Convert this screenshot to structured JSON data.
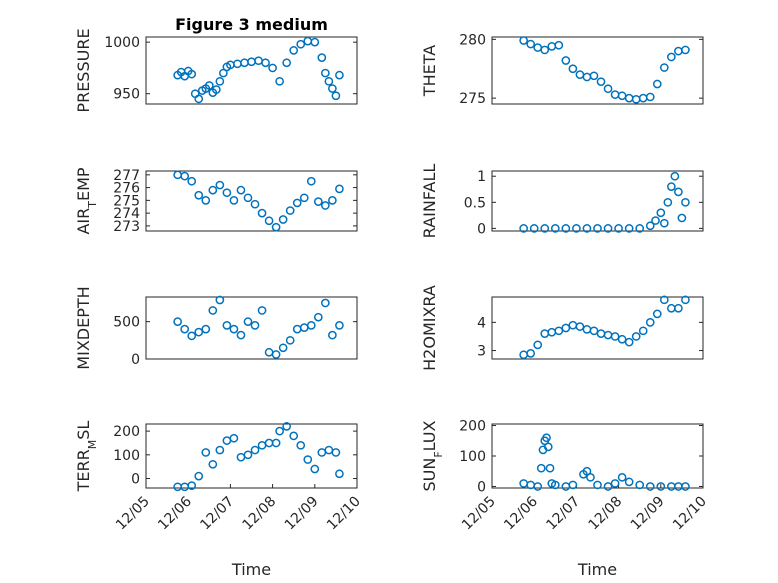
{
  "marker_color": "#0072BD",
  "chart_data": [
    {
      "type": "scatter",
      "title": "Figure 3 medium",
      "ylabel": "PRESSURE",
      "xlabel": "",
      "xlim": [
        "12/05",
        "12/10"
      ],
      "ylim": [
        940,
        1005
      ],
      "yticks": [
        "950",
        "1000"
      ],
      "xticks": [],
      "x": [
        "12/05 18:00",
        "12/05 20:00",
        "12/05 22:00",
        "12/06 00:00",
        "12/06 02:00",
        "12/06 04:00",
        "12/06 06:00",
        "12/06 08:00",
        "12/06 10:00",
        "12/06 12:00",
        "12/06 14:00",
        "12/06 16:00",
        "12/06 18:00",
        "12/06 20:00",
        "12/06 22:00",
        "12/07 00:00",
        "12/07 04:00",
        "12/07 08:00",
        "12/07 12:00",
        "12/07 16:00",
        "12/07 20:00",
        "12/08 00:00",
        "12/08 04:00",
        "12/08 08:00",
        "12/08 12:00",
        "12/08 16:00",
        "12/08 20:00",
        "12/09 00:00",
        "12/09 04:00",
        "12/09 06:00",
        "12/09 08:00",
        "12/09 10:00",
        "12/09 12:00",
        "12/09 14:00"
      ],
      "y": [
        968,
        971,
        967,
        972,
        969,
        950,
        945,
        953,
        955,
        958,
        951,
        954,
        962,
        970,
        976,
        978,
        979,
        980,
        981,
        982,
        980,
        975,
        962,
        980,
        992,
        998,
        1001,
        1000,
        985,
        970,
        962,
        955,
        948,
        968
      ]
    },
    {
      "type": "scatter",
      "ylabel": "THETA",
      "xlabel": "",
      "xlim": [
        "12/05",
        "12/10"
      ],
      "ylim": [
        274.5,
        280.2
      ],
      "yticks": [
        "275",
        "280"
      ],
      "xticks": [],
      "x": [
        "12/05 18:00",
        "12/05 22:00",
        "12/06 02:00",
        "12/06 06:00",
        "12/06 10:00",
        "12/06 14:00",
        "12/06 18:00",
        "12/06 22:00",
        "12/07 02:00",
        "12/07 06:00",
        "12/07 10:00",
        "12/07 14:00",
        "12/07 18:00",
        "12/07 22:00",
        "12/08 02:00",
        "12/08 06:00",
        "12/08 10:00",
        "12/08 14:00",
        "12/08 18:00",
        "12/08 22:00",
        "12/09 02:00",
        "12/09 06:00",
        "12/09 10:00",
        "12/09 14:00"
      ],
      "y": [
        279.9,
        279.6,
        279.3,
        279.1,
        279.4,
        279.5,
        278.2,
        277.5,
        277.0,
        276.8,
        276.9,
        276.4,
        275.8,
        275.3,
        275.2,
        275.0,
        274.9,
        275.0,
        275.1,
        276.2,
        277.6,
        278.5,
        279.0,
        279.1
      ]
    },
    {
      "type": "scatter",
      "ylabel": "AIR_TEMP",
      "xlabel": "",
      "xlim": [
        "12/05",
        "12/10"
      ],
      "ylim": [
        272.6,
        277.3
      ],
      "yticks": [
        "273",
        "274",
        "275",
        "276",
        "277"
      ],
      "xticks": [],
      "x": [
        "12/05 18:00",
        "12/05 22:00",
        "12/06 02:00",
        "12/06 06:00",
        "12/06 10:00",
        "12/06 14:00",
        "12/06 18:00",
        "12/06 22:00",
        "12/07 02:00",
        "12/07 06:00",
        "12/07 10:00",
        "12/07 14:00",
        "12/07 18:00",
        "12/07 22:00",
        "12/08 02:00",
        "12/08 06:00",
        "12/08 10:00",
        "12/08 14:00",
        "12/08 18:00",
        "12/08 22:00",
        "12/09 02:00",
        "12/09 06:00",
        "12/09 10:00",
        "12/09 14:00"
      ],
      "y": [
        277.0,
        276.9,
        276.5,
        275.4,
        275.0,
        275.8,
        276.2,
        275.6,
        275.0,
        275.8,
        275.2,
        274.7,
        274.0,
        273.4,
        272.9,
        273.5,
        274.2,
        274.8,
        275.2,
        276.5,
        274.9,
        274.6,
        275.0,
        275.9
      ]
    },
    {
      "type": "scatter",
      "ylabel": "RAINFALL",
      "xlabel": "",
      "xlim": [
        "12/05",
        "12/10"
      ],
      "ylim": [
        -0.05,
        1.1
      ],
      "yticks": [
        "0",
        "0.5",
        "1"
      ],
      "xticks": [],
      "x": [
        "12/05 18:00",
        "12/06 00:00",
        "12/06 06:00",
        "12/06 12:00",
        "12/06 18:00",
        "12/07 00:00",
        "12/07 06:00",
        "12/07 12:00",
        "12/07 18:00",
        "12/08 00:00",
        "12/08 06:00",
        "12/08 12:00",
        "12/08 18:00",
        "12/08 21:00",
        "12/09 00:00",
        "12/09 02:00",
        "12/09 04:00",
        "12/09 06:00",
        "12/09 08:00",
        "12/09 10:00",
        "12/09 12:00",
        "12/09 14:00"
      ],
      "y": [
        0,
        0,
        0,
        0,
        0,
        0,
        0,
        0,
        0,
        0,
        0,
        0,
        0.05,
        0.15,
        0.3,
        0.1,
        0.5,
        0.8,
        1.0,
        0.7,
        0.2,
        0.5
      ]
    },
    {
      "type": "scatter",
      "ylabel": "MIXDEPTH",
      "xlabel": "",
      "xlim": [
        "12/05",
        "12/10"
      ],
      "ylim": [
        0,
        830
      ],
      "yticks": [
        "0",
        "500"
      ],
      "xticks": [],
      "x": [
        "12/05 18:00",
        "12/05 22:00",
        "12/06 02:00",
        "12/06 06:00",
        "12/06 10:00",
        "12/06 14:00",
        "12/06 18:00",
        "12/06 22:00",
        "12/07 02:00",
        "12/07 06:00",
        "12/07 10:00",
        "12/07 14:00",
        "12/07 18:00",
        "12/07 22:00",
        "12/08 02:00",
        "12/08 06:00",
        "12/08 10:00",
        "12/08 14:00",
        "12/08 18:00",
        "12/08 22:00",
        "12/09 02:00",
        "12/09 06:00",
        "12/09 10:00",
        "12/09 14:00"
      ],
      "y": [
        500,
        400,
        310,
        360,
        400,
        650,
        790,
        450,
        400,
        320,
        500,
        450,
        650,
        90,
        60,
        150,
        250,
        400,
        420,
        450,
        560,
        750,
        320,
        450
      ]
    },
    {
      "type": "scatter",
      "ylabel": "H2OMIXRA",
      "xlabel": "",
      "xlim": [
        "12/05",
        "12/10"
      ],
      "ylim": [
        2.7,
        4.9
      ],
      "yticks": [
        "3",
        "4"
      ],
      "xticks": [],
      "x": [
        "12/05 18:00",
        "12/05 22:00",
        "12/06 02:00",
        "12/06 06:00",
        "12/06 10:00",
        "12/06 14:00",
        "12/06 18:00",
        "12/06 22:00",
        "12/07 02:00",
        "12/07 06:00",
        "12/07 10:00",
        "12/07 14:00",
        "12/07 18:00",
        "12/07 22:00",
        "12/08 02:00",
        "12/08 06:00",
        "12/08 10:00",
        "12/08 14:00",
        "12/08 18:00",
        "12/08 22:00",
        "12/09 02:00",
        "12/09 06:00",
        "12/09 10:00",
        "12/09 14:00"
      ],
      "y": [
        2.85,
        2.9,
        3.2,
        3.6,
        3.65,
        3.7,
        3.8,
        3.9,
        3.85,
        3.75,
        3.7,
        3.6,
        3.55,
        3.5,
        3.4,
        3.3,
        3.5,
        3.7,
        4.0,
        4.3,
        4.8,
        4.5,
        4.5,
        4.8
      ]
    },
    {
      "type": "scatter",
      "ylabel": "TERR_MSL",
      "xlabel": "Time",
      "xlim": [
        "12/05",
        "12/10"
      ],
      "ylim": [
        -40,
        230
      ],
      "yticks": [
        "0",
        "100",
        "200"
      ],
      "xticks": [
        "12/05",
        "12/06",
        "12/07",
        "12/08",
        "12/09",
        "12/10"
      ],
      "x": [
        "12/05 18:00",
        "12/05 22:00",
        "12/06 02:00",
        "12/06 06:00",
        "12/06 10:00",
        "12/06 14:00",
        "12/06 18:00",
        "12/06 22:00",
        "12/07 02:00",
        "12/07 06:00",
        "12/07 10:00",
        "12/07 14:00",
        "12/07 18:00",
        "12/07 22:00",
        "12/08 02:00",
        "12/08 04:00",
        "12/08 08:00",
        "12/08 12:00",
        "12/08 16:00",
        "12/08 20:00",
        "12/09 00:00",
        "12/09 04:00",
        "12/09 08:00",
        "12/09 12:00",
        "12/09 14:00"
      ],
      "y": [
        -35,
        -35,
        -30,
        10,
        110,
        60,
        120,
        160,
        170,
        90,
        100,
        120,
        140,
        150,
        150,
        200,
        220,
        180,
        140,
        80,
        40,
        110,
        120,
        110,
        20
      ]
    },
    {
      "type": "scatter",
      "ylabel": "SUN_FLUX",
      "xlabel": "Time",
      "xlim": [
        "12/05",
        "12/10"
      ],
      "ylim": [
        -5,
        205
      ],
      "yticks": [
        "0",
        "100",
        "200"
      ],
      "xticks": [
        "12/05",
        "12/06",
        "12/07",
        "12/08",
        "12/09",
        "12/10"
      ],
      "x": [
        "12/05 18:00",
        "12/05 22:00",
        "12/06 02:00",
        "12/06 04:00",
        "12/06 05:00",
        "12/06 06:00",
        "12/06 07:00",
        "12/06 08:00",
        "12/06 09:00",
        "12/06 10:00",
        "12/06 12:00",
        "12/06 18:00",
        "12/06 22:00",
        "12/07 04:00",
        "12/07 06:00",
        "12/07 08:00",
        "12/07 12:00",
        "12/07 18:00",
        "12/07 22:00",
        "12/08 02:00",
        "12/08 06:00",
        "12/08 12:00",
        "12/08 18:00",
        "12/09 00:00",
        "12/09 06:00",
        "12/09 10:00",
        "12/09 14:00"
      ],
      "y": [
        10,
        5,
        0,
        60,
        120,
        150,
        160,
        130,
        60,
        10,
        5,
        0,
        5,
        40,
        50,
        30,
        5,
        0,
        10,
        30,
        15,
        5,
        0,
        0,
        0,
        0,
        0
      ]
    }
  ]
}
